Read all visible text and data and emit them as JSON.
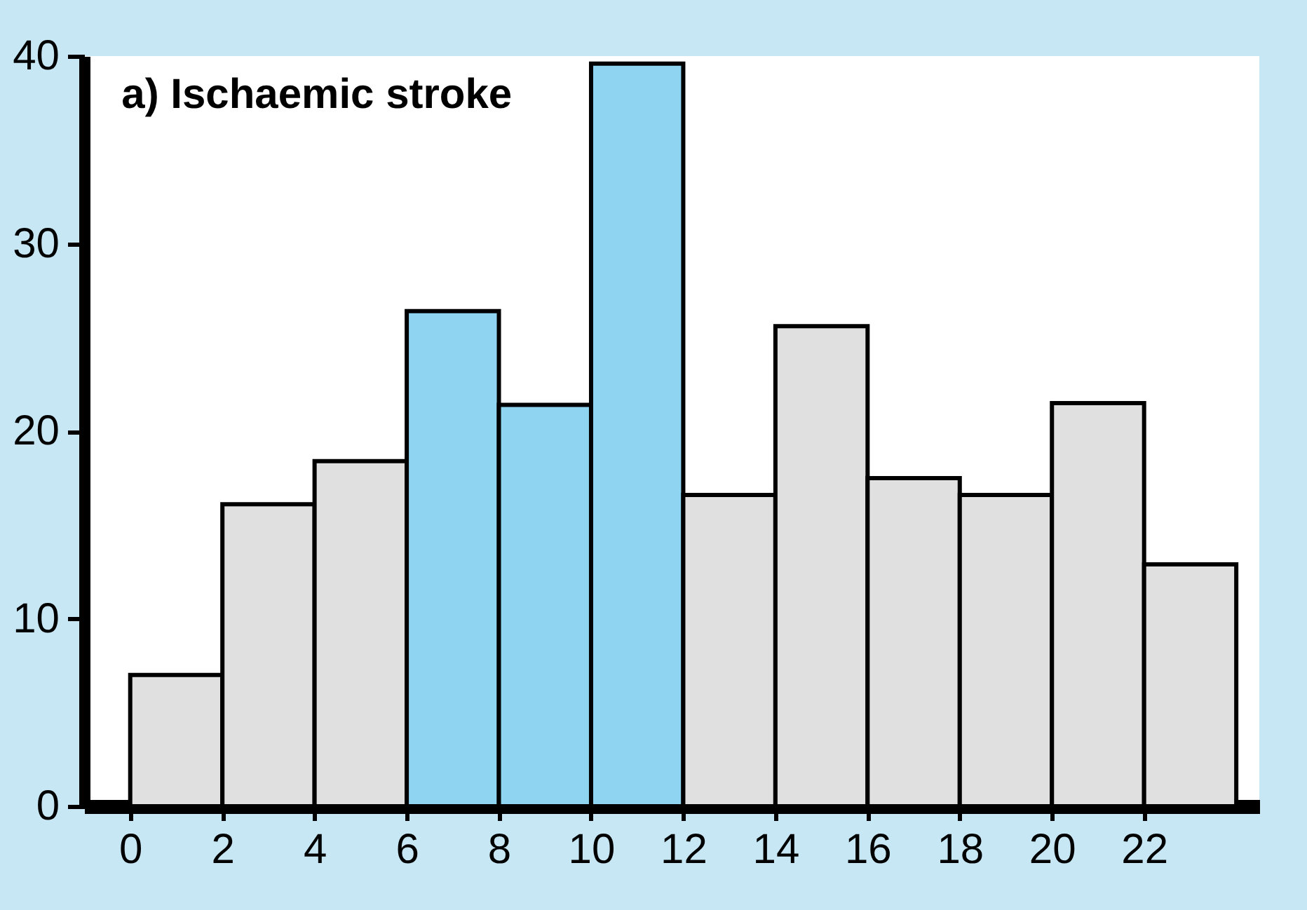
{
  "chart_data": {
    "type": "histogram",
    "title": "a) Ischaemic stroke",
    "bins": [
      0,
      2,
      4,
      6,
      8,
      10,
      12,
      14,
      16,
      18,
      20,
      22,
      24
    ],
    "values": [
      7,
      16.1,
      18.4,
      26.4,
      21.4,
      39.6,
      16.6,
      25.6,
      17.5,
      16.6,
      21.5,
      12.9
    ],
    "colors": [
      "#e0e0e0",
      "#e0e0e0",
      "#e0e0e0",
      "#8fd4f0",
      "#8fd4f0",
      "#8fd4f0",
      "#e0e0e0",
      "#e0e0e0",
      "#e0e0e0",
      "#e0e0e0",
      "#e0e0e0",
      "#e0e0e0"
    ],
    "xlim": [
      -1,
      24.5
    ],
    "xticks": [
      0,
      2,
      4,
      6,
      8,
      10,
      12,
      14,
      16,
      18,
      20,
      22
    ],
    "ylim": [
      0,
      40
    ],
    "yticks": [
      0,
      10,
      20,
      30,
      40
    ],
    "grid": false,
    "legend": false
  }
}
